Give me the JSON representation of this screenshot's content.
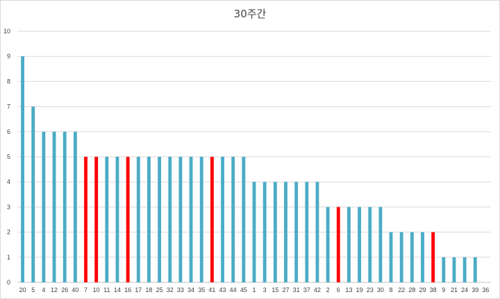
{
  "chart_data": {
    "type": "bar",
    "title": "30주간",
    "xlabel": "",
    "ylabel": "",
    "ylim": [
      0,
      10
    ],
    "yticks": [
      0,
      1,
      2,
      3,
      4,
      5,
      6,
      7,
      8,
      9,
      10
    ],
    "grid": true,
    "legend": "none",
    "colors": {
      "default": "#4bacc6",
      "highlight": "#ff0000",
      "grid": "#d9d9d9",
      "axis": "#bfbfbf",
      "text": "#404040"
    },
    "categories": [
      "20",
      "5",
      "4",
      "12",
      "26",
      "40",
      "7",
      "10",
      "11",
      "14",
      "16",
      "17",
      "18",
      "25",
      "32",
      "33",
      "34",
      "35",
      "41",
      "43",
      "44",
      "45",
      "1",
      "3",
      "15",
      "27",
      "31",
      "37",
      "42",
      "2",
      "6",
      "13",
      "19",
      "23",
      "30",
      "8",
      "22",
      "28",
      "29",
      "38",
      "9",
      "21",
      "24",
      "39",
      "36"
    ],
    "values": [
      9,
      7,
      6,
      6,
      6,
      6,
      5,
      5,
      5,
      5,
      5,
      5,
      5,
      5,
      5,
      5,
      5,
      5,
      5,
      5,
      5,
      5,
      4,
      4,
      4,
      4,
      4,
      4,
      4,
      3,
      3,
      3,
      3,
      3,
      3,
      2,
      2,
      2,
      2,
      2,
      1,
      1,
      1,
      1,
      0
    ],
    "highlighted": [
      "7",
      "10",
      "16",
      "41",
      "6",
      "38"
    ]
  }
}
